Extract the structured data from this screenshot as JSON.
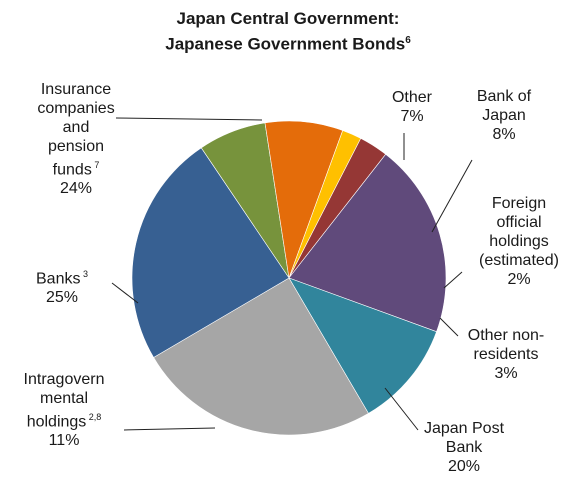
{
  "chart_data": {
    "type": "pie",
    "title_line1": "Japan Central Government:",
    "title_line2": "Japanese Government Bonds",
    "title_note": "6",
    "slices": [
      {
        "key": "other",
        "lines": [
          "Other",
          "7%"
        ],
        "sup": "",
        "value": 7,
        "color": "#77933c"
      },
      {
        "key": "boj",
        "lines": [
          "Bank of",
          "Japan",
          "8%"
        ],
        "sup": "",
        "value": 8,
        "color": "#e46c0a"
      },
      {
        "key": "foreign_official",
        "lines": [
          "Foreign",
          "official",
          "holdings",
          "(estimated)",
          "2%"
        ],
        "sup": "",
        "value": 2,
        "color": "#ffc000"
      },
      {
        "key": "other_nonres",
        "lines": [
          "Other non-",
          "residents",
          "3%"
        ],
        "sup": "",
        "value": 3,
        "color": "#953735"
      },
      {
        "key": "post_bank",
        "lines": [
          "Japan Post",
          "Bank",
          "20%"
        ],
        "sup": "",
        "value": 20,
        "color": "#604a7b"
      },
      {
        "key": "intragov",
        "lines": [
          "Intragovern",
          "mental",
          "holdings",
          "11%"
        ],
        "sup": "2,8",
        "value": 11,
        "color": "#31859c"
      },
      {
        "key": "banks",
        "lines": [
          "Banks",
          "25%"
        ],
        "sup": "3",
        "value": 25,
        "color": "#a6a6a6"
      },
      {
        "key": "insurance",
        "lines": [
          "Insurance",
          "companies",
          "and",
          "pension",
          "funds",
          "24%"
        ],
        "sup": "7",
        "value": 24,
        "color": "#376092"
      }
    ]
  }
}
